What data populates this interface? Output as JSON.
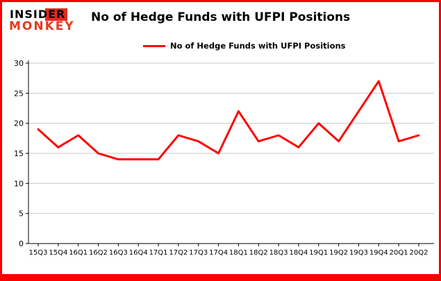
{
  "logo": {
    "line1": "INSIDER",
    "line2": "MONKEY"
  },
  "header": {
    "title": "No of Hedge Funds with UFPI Positions"
  },
  "legend": {
    "label": "No of Hedge Funds with UFPI Positions",
    "color": "#ff0000"
  },
  "colors": {
    "line": "#ff0000",
    "grid": "#c9c9c9",
    "axis": "#000000",
    "frame": "#fb0000"
  },
  "chart_data": {
    "type": "line",
    "title": "No of Hedge Funds with UFPI Positions",
    "categories": [
      "15Q3",
      "15Q4",
      "16Q1",
      "16Q2",
      "16Q3",
      "16Q4",
      "17Q1",
      "17Q2",
      "17Q3",
      "17Q4",
      "18Q1",
      "18Q2",
      "18Q3",
      "18Q4",
      "19Q1",
      "19Q2",
      "19Q3",
      "19Q4",
      "20Q1",
      "20Q2"
    ],
    "series": [
      {
        "name": "No of Hedge Funds with UFPI Positions",
        "color": "#ff0000",
        "values": [
          19,
          16,
          18,
          15,
          14,
          14,
          14,
          18,
          17,
          15,
          22,
          17,
          18,
          16,
          20,
          17,
          22,
          27,
          17,
          18
        ]
      }
    ],
    "xlabel": "",
    "ylabel": "",
    "ylim": [
      0,
      30
    ],
    "yticks": [
      0,
      5,
      10,
      15,
      20,
      25,
      30
    ],
    "grid": true,
    "legend_position": "top"
  }
}
